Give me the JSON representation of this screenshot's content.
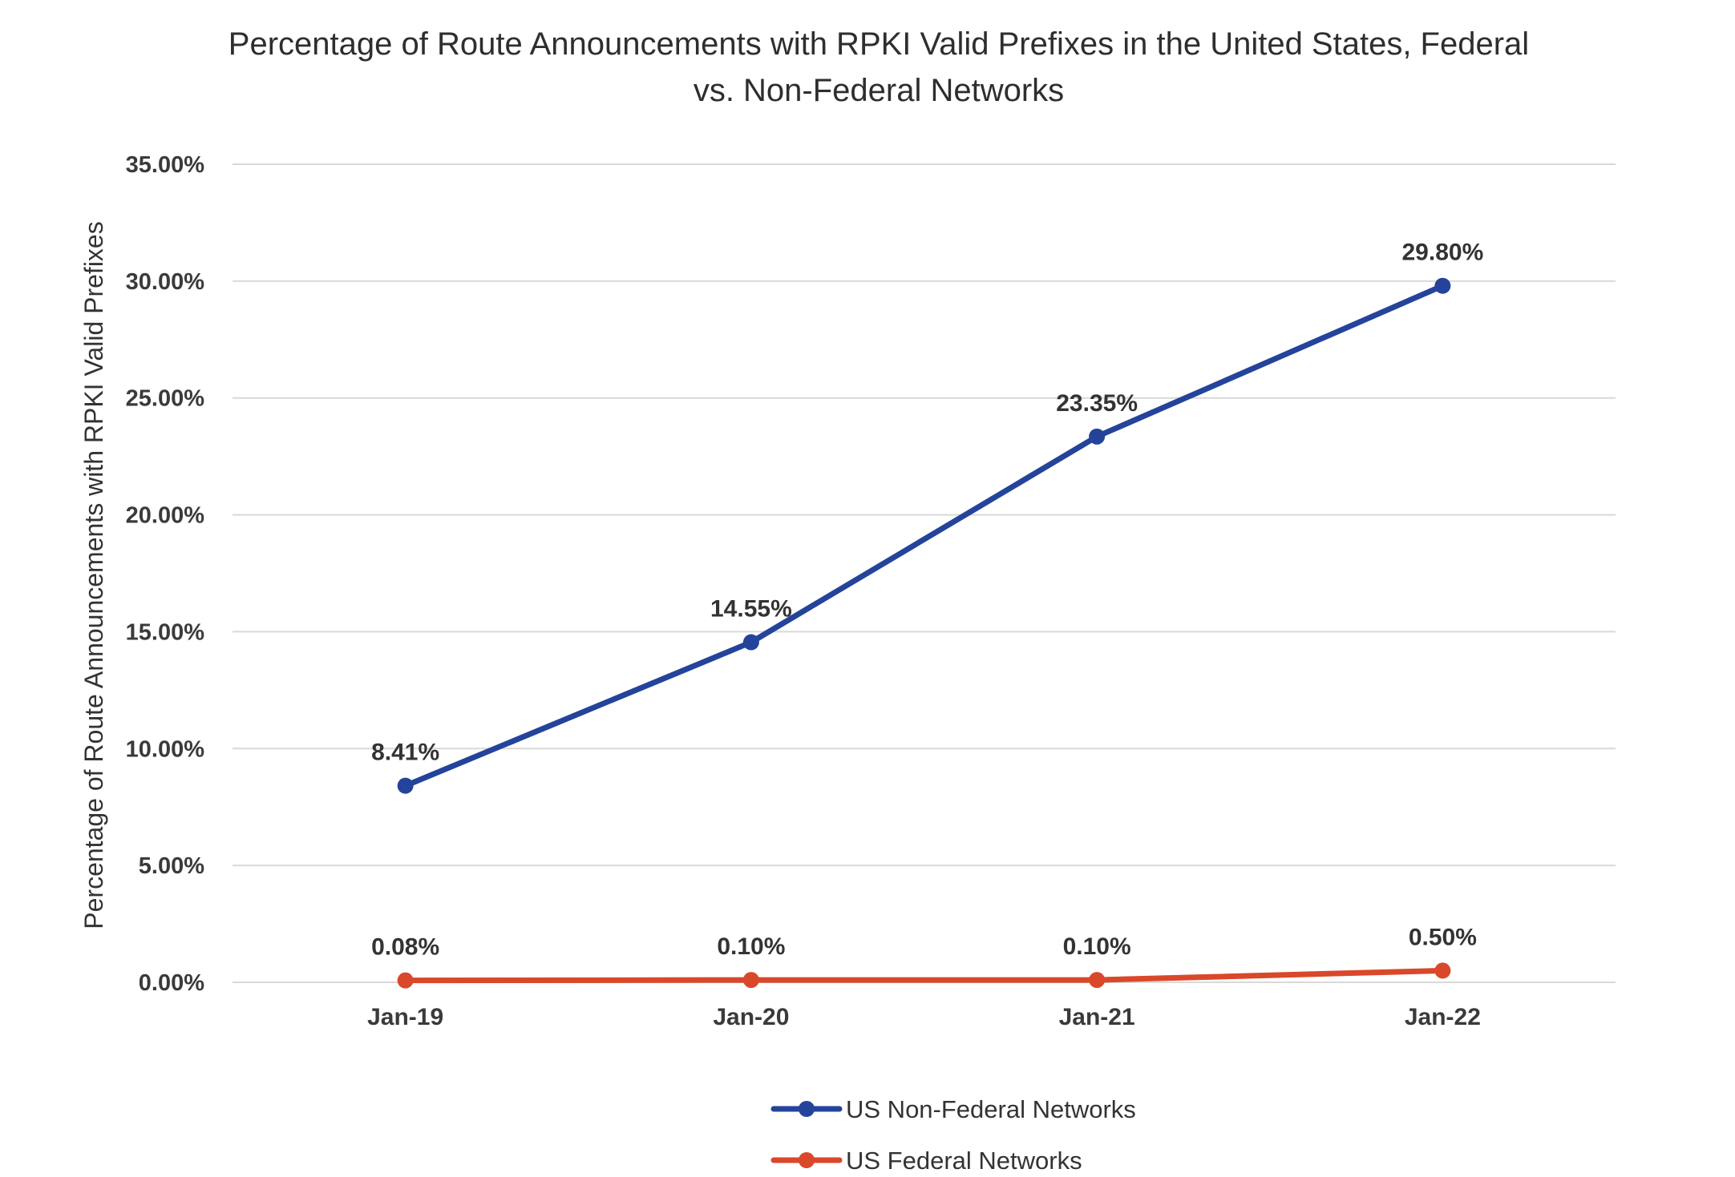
{
  "chart_data": {
    "type": "line",
    "title_lines": [
      "Percentage of Route Announcements with RPKI Valid Prefixes in the United States, Federal",
      "vs. Non-Federal Networks"
    ],
    "xlabel": "",
    "ylabel": "Percentage of Route Announcements with RPKI Valid Prefixes",
    "ylim": [
      0,
      35
    ],
    "y_ticks": [
      {
        "value": 0,
        "label": "0.00%"
      },
      {
        "value": 5,
        "label": "5.00%"
      },
      {
        "value": 10,
        "label": "10.00%"
      },
      {
        "value": 15,
        "label": "15.00%"
      },
      {
        "value": 20,
        "label": "20.00%"
      },
      {
        "value": 25,
        "label": "25.00%"
      },
      {
        "value": 30,
        "label": "30.00%"
      },
      {
        "value": 35,
        "label": "35.00%"
      }
    ],
    "categories": [
      "Jan-19",
      "Jan-20",
      "Jan-21",
      "Jan-22"
    ],
    "grid": true,
    "legend_position": "bottom",
    "series": [
      {
        "name": "US Non-Federal Networks",
        "color": "#24439a",
        "values": [
          8.41,
          14.55,
          23.35,
          29.8
        ],
        "labels": [
          "8.41%",
          "14.55%",
          "23.35%",
          "29.80%"
        ]
      },
      {
        "name": "US Federal Networks",
        "color": "#d9482a",
        "values": [
          0.08,
          0.1,
          0.1,
          0.5
        ],
        "labels": [
          "0.08%",
          "0.10%",
          "0.10%",
          "0.50%"
        ]
      }
    ]
  }
}
